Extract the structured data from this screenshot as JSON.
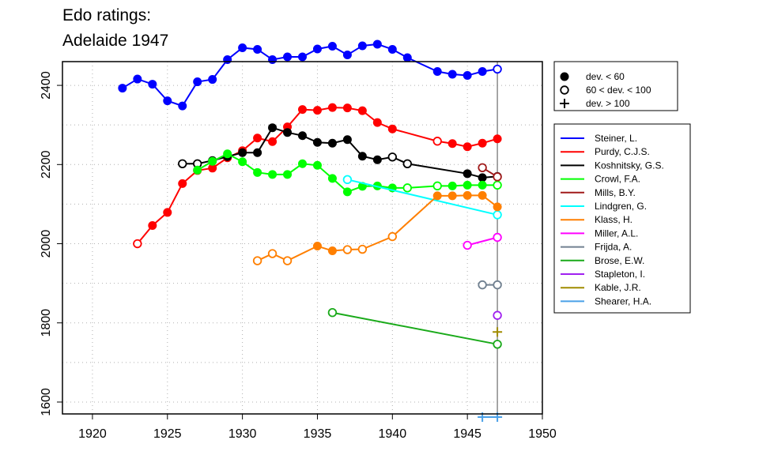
{
  "title": [
    "Edo ratings:",
    "Adelaide 1947"
  ],
  "chart_data": {
    "type": "line",
    "xlim": [
      1918,
      1950
    ],
    "ylim": [
      1570,
      2460
    ],
    "x_ticks": [
      "1920",
      "1925",
      "1930",
      "1935",
      "1940",
      "1945",
      "1950"
    ],
    "y_ticks": [
      "1600",
      "1800",
      "2000",
      "2200",
      "2400"
    ],
    "grid": true,
    "reference_line_x": 1947,
    "marker_legend": [
      {
        "label": "dev. < 60",
        "marker": "filled"
      },
      {
        "label": "60 < dev. < 100",
        "marker": "open"
      },
      {
        "label": "dev. > 100",
        "marker": "plus"
      }
    ],
    "series": [
      {
        "name": "Steiner, L.",
        "color": "#0000ff",
        "points": [
          [
            1922,
            2393,
            "f"
          ],
          [
            1923,
            2416,
            "f"
          ],
          [
            1924,
            2403,
            "f"
          ],
          [
            1925,
            2361,
            "f"
          ],
          [
            1926,
            2348,
            "f"
          ],
          [
            1927,
            2409,
            "f"
          ],
          [
            1928,
            2415,
            "f"
          ],
          [
            1929,
            2465,
            "f"
          ],
          [
            1930,
            2495,
            "f"
          ],
          [
            1931,
            2491,
            "f"
          ],
          [
            1932,
            2465,
            "f"
          ],
          [
            1933,
            2472,
            "f"
          ],
          [
            1934,
            2472,
            "f"
          ],
          [
            1935,
            2492,
            "f"
          ],
          [
            1936,
            2499,
            "f"
          ],
          [
            1937,
            2477,
            "f"
          ],
          [
            1938,
            2500,
            "f"
          ],
          [
            1939,
            2504,
            "f"
          ],
          [
            1940,
            2491,
            "f"
          ],
          [
            1941,
            2470,
            "f"
          ],
          [
            1943,
            2435,
            "f"
          ],
          [
            1944,
            2428,
            "f"
          ],
          [
            1945,
            2425,
            "f"
          ],
          [
            1946,
            2435,
            "f"
          ],
          [
            1947,
            2441,
            "o"
          ]
        ]
      },
      {
        "name": "Purdy, C.J.S.",
        "color": "#ff0000",
        "points": [
          [
            1923,
            2000,
            "o"
          ],
          [
            1924,
            2046,
            "f"
          ],
          [
            1925,
            2079,
            "f"
          ],
          [
            1926,
            2152,
            "f"
          ],
          [
            1927,
            2185,
            "f"
          ],
          [
            1928,
            2191,
            "f"
          ],
          [
            1929,
            2217,
            "f"
          ],
          [
            1930,
            2235,
            "f"
          ],
          [
            1931,
            2267,
            "f"
          ],
          [
            1932,
            2258,
            "f"
          ],
          [
            1933,
            2295,
            "f"
          ],
          [
            1934,
            2339,
            "f"
          ],
          [
            1935,
            2337,
            "f"
          ],
          [
            1936,
            2344,
            "f"
          ],
          [
            1937,
            2343,
            "f"
          ],
          [
            1938,
            2336,
            "f"
          ],
          [
            1939,
            2306,
            "f"
          ],
          [
            1940,
            2290,
            "f"
          ],
          [
            1943,
            2259,
            "o"
          ],
          [
            1944,
            2253,
            "f"
          ],
          [
            1945,
            2245,
            "f"
          ],
          [
            1946,
            2254,
            "f"
          ],
          [
            1947,
            2265,
            "f"
          ]
        ]
      },
      {
        "name": "Koshnitsky, G.S.",
        "color": "#000000",
        "points": [
          [
            1926,
            2202,
            "o"
          ],
          [
            1927,
            2202,
            "o"
          ],
          [
            1928,
            2210,
            "f"
          ],
          [
            1929,
            2220,
            "f"
          ],
          [
            1930,
            2230,
            "f"
          ],
          [
            1931,
            2230,
            "f"
          ],
          [
            1932,
            2293,
            "f"
          ],
          [
            1933,
            2281,
            "f"
          ],
          [
            1934,
            2273,
            "f"
          ],
          [
            1935,
            2256,
            "f"
          ],
          [
            1936,
            2254,
            "f"
          ],
          [
            1937,
            2263,
            "f"
          ],
          [
            1938,
            2221,
            "f"
          ],
          [
            1939,
            2212,
            "f"
          ],
          [
            1940,
            2219,
            "o"
          ],
          [
            1941,
            2202,
            "o"
          ],
          [
            1945,
            2177,
            "f"
          ],
          [
            1946,
            2167,
            "f"
          ],
          [
            1947,
            2170,
            "f"
          ]
        ]
      },
      {
        "name": "Crowl, F.A.",
        "color": "#00ff00",
        "points": [
          [
            1927,
            2186,
            "f"
          ],
          [
            1928,
            2208,
            "f"
          ],
          [
            1929,
            2227,
            "f"
          ],
          [
            1930,
            2207,
            "f"
          ],
          [
            1931,
            2180,
            "f"
          ],
          [
            1932,
            2175,
            "f"
          ],
          [
            1933,
            2175,
            "f"
          ],
          [
            1934,
            2202,
            "f"
          ],
          [
            1935,
            2198,
            "f"
          ],
          [
            1936,
            2165,
            "f"
          ],
          [
            1937,
            2131,
            "f"
          ],
          [
            1938,
            2145,
            "f"
          ],
          [
            1939,
            2146,
            "f"
          ],
          [
            1940,
            2141,
            "f"
          ],
          [
            1941,
            2141,
            "o"
          ],
          [
            1943,
            2146,
            "o"
          ],
          [
            1944,
            2146,
            "f"
          ],
          [
            1945,
            2148,
            "f"
          ],
          [
            1946,
            2148,
            "f"
          ],
          [
            1947,
            2148,
            "o"
          ]
        ]
      },
      {
        "name": "Mills, B.Y.",
        "color": "#a01a1a",
        "points": [
          [
            1946,
            2192,
            "o"
          ],
          [
            1947,
            2169,
            "o"
          ]
        ]
      },
      {
        "name": "Lindgren, G.",
        "color": "#00ffff",
        "points": [
          [
            1937,
            2162,
            "o"
          ],
          [
            1947,
            2073,
            "o"
          ]
        ]
      },
      {
        "name": "Klass, H.",
        "color": "#ff7f00",
        "points": [
          [
            1931,
            1957,
            "o"
          ],
          [
            1932,
            1975,
            "o"
          ],
          [
            1933,
            1957,
            "o"
          ],
          [
            1935,
            1994,
            "f"
          ],
          [
            1936,
            1982,
            "f"
          ],
          [
            1937,
            1985,
            "o"
          ],
          [
            1938,
            1986,
            "o"
          ],
          [
            1940,
            2018,
            "o"
          ],
          [
            1943,
            2121,
            "f"
          ],
          [
            1944,
            2121,
            "f"
          ],
          [
            1945,
            2122,
            "f"
          ],
          [
            1946,
            2122,
            "f"
          ],
          [
            1947,
            2093,
            "f"
          ]
        ]
      },
      {
        "name": "Miller, A.L.",
        "color": "#ff00ff",
        "points": [
          [
            1945,
            1996,
            "o"
          ],
          [
            1947,
            2016,
            "o"
          ]
        ]
      },
      {
        "name": "Frijda, A.",
        "color": "#708090",
        "points": [
          [
            1946,
            1896,
            "o"
          ],
          [
            1947,
            1896,
            "o"
          ]
        ]
      },
      {
        "name": "Brose, E.W.",
        "color": "#1aaa1a",
        "points": [
          [
            1936,
            1826,
            "o"
          ],
          [
            1947,
            1746,
            "o"
          ]
        ]
      },
      {
        "name": "Stapleton, I.",
        "color": "#a020f0",
        "points": [
          [
            1947,
            1819,
            "o"
          ]
        ]
      },
      {
        "name": "Kable, J.R.",
        "color": "#a08c00",
        "points": [
          [
            1947,
            1777,
            "p"
          ]
        ]
      },
      {
        "name": "Shearer, H.A.",
        "color": "#4aa0e8",
        "points": [
          [
            1946,
            1562,
            "p"
          ],
          [
            1947,
            1562,
            "p"
          ]
        ]
      }
    ]
  }
}
